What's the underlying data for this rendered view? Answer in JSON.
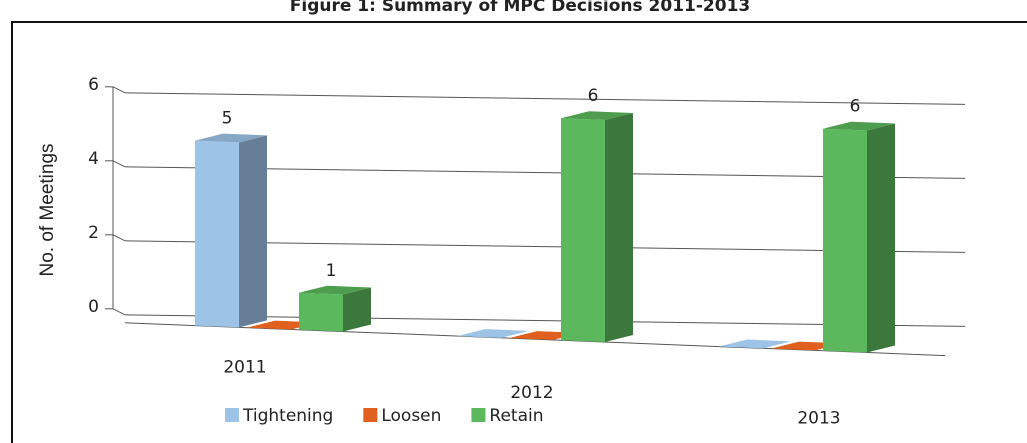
{
  "chart_data": {
    "type": "bar3d",
    "title": "Figure 1: Summary of MPC Decisions 2011-2013",
    "y_label": "No. of Meetings",
    "categories": [
      "2011",
      "2012",
      "2013"
    ],
    "series": [
      {
        "name": "Tightening",
        "color": "#9dc3e6",
        "values": [
          5,
          0,
          0
        ]
      },
      {
        "name": "Loosen",
        "color": "#e0601f",
        "values": [
          0,
          0,
          0
        ]
      },
      {
        "name": "Retain",
        "color": "#5cb85c",
        "values": [
          1,
          6,
          6
        ]
      }
    ],
    "ylim": [
      0,
      6
    ],
    "yticks": [
      0,
      2,
      4,
      6
    ],
    "grid": true,
    "legend": "bottom"
  }
}
